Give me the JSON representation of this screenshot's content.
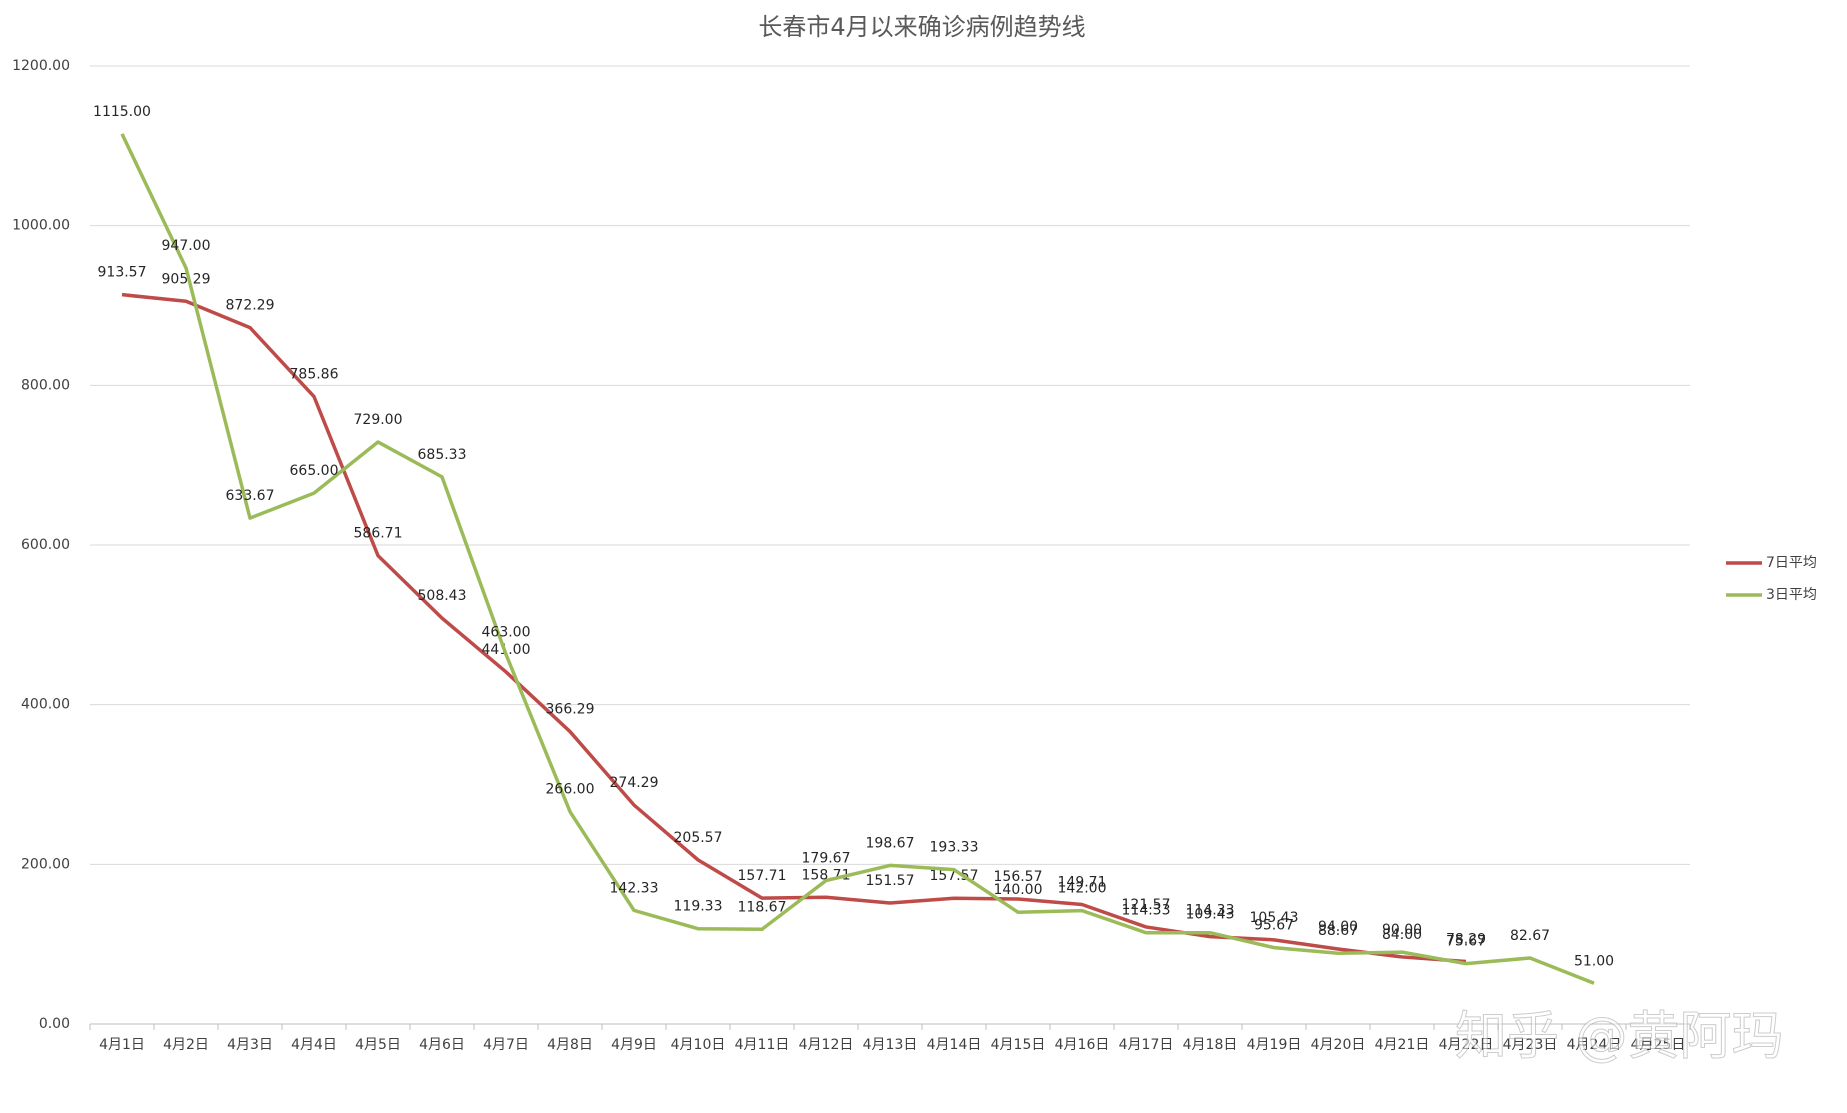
{
  "chart_data": {
    "type": "line",
    "title": "长春市4月以来确诊病例趋势线",
    "categories": [
      "4月1日",
      "4月2日",
      "4月3日",
      "4月4日",
      "4月5日",
      "4月6日",
      "4月7日",
      "4月8日",
      "4月9日",
      "4月10日",
      "4月11日",
      "4月12日",
      "4月13日",
      "4月14日",
      "4月15日",
      "4月16日",
      "4月17日",
      "4月18日",
      "4月19日",
      "4月20日",
      "4月21日",
      "4月22日",
      "4月23日",
      "4月24日",
      "4月25日"
    ],
    "series": [
      {
        "name": "7日平均",
        "color": "#be4b48",
        "values": [
          913.57,
          905.29,
          872.29,
          785.86,
          586.71,
          508.43,
          441.0,
          366.29,
          274.29,
          205.57,
          157.71,
          158.71,
          151.57,
          157.57,
          156.57,
          149.71,
          121.57,
          109.43,
          105.43,
          94.0,
          84.0,
          78.29,
          null,
          null,
          null
        ],
        "value_labels": [
          "913.57",
          "905.29",
          "872.29",
          "785.86",
          "586.71",
          "508.43",
          "441.00",
          "366.29",
          "274.29",
          "205.57",
          "157.71",
          "158.71",
          "151.57",
          "157.57",
          "156.57",
          "149.71",
          "121.57",
          "109.43",
          "105.43",
          "94.00",
          "84.00",
          "78.29",
          null,
          null,
          null
        ]
      },
      {
        "name": "3日平均",
        "color": "#9bbb59",
        "values": [
          1115.0,
          947.0,
          633.67,
          665.0,
          729.0,
          685.33,
          463.0,
          266.0,
          142.33,
          119.33,
          118.67,
          179.67,
          198.67,
          193.33,
          140.0,
          142.0,
          114.33,
          114.33,
          95.67,
          88.67,
          90.0,
          75.67,
          82.67,
          51.0,
          null
        ],
        "value_labels": [
          "1115.00",
          "947.00",
          "633.67",
          "665.00",
          "729.00",
          "685.33",
          "463.00",
          "266.00",
          "142.33",
          "119.33",
          "118.67",
          "179.67",
          "198.67",
          "193.33",
          "140.00",
          "142.00",
          "114.33",
          "114.33",
          "95.67",
          "88.67",
          "90.00",
          "75.67",
          "82.67",
          "51.00",
          null
        ]
      }
    ],
    "ylim": [
      0,
      1200
    ],
    "yticks": [
      {
        "value": 0,
        "label": "0.00"
      },
      {
        "value": 200,
        "label": "200.00"
      },
      {
        "value": 400,
        "label": "400.00"
      },
      {
        "value": 600,
        "label": "600.00"
      },
      {
        "value": 800,
        "label": "800.00"
      },
      {
        "value": 1000,
        "label": "1000.00"
      },
      {
        "value": 1200,
        "label": "1200.00"
      }
    ],
    "grid": true,
    "legend": "right",
    "watermark": "知乎 @黄阿玛"
  }
}
